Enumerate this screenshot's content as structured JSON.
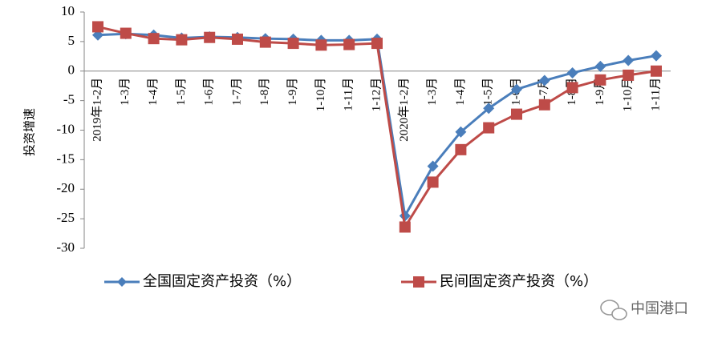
{
  "chart_data": {
    "type": "line",
    "y_label": "投资增速",
    "categories": [
      "2019年1-2月",
      "1-3月",
      "1-4月",
      "1-5月",
      "1-6月",
      "1-7月",
      "1-8月",
      "1-9月",
      "1-10月",
      "1-11月",
      "1-12月",
      "2020年1-2月",
      "1-3月",
      "1-4月",
      "1-5月",
      "1-6月",
      "1-7月",
      "1-8月",
      "1-9月",
      "1-10月",
      "1-11月"
    ],
    "series": [
      {
        "name": "全国固定资产投资（%）",
        "color": "#4a7ebb",
        "marker": "diamond",
        "values": [
          6.1,
          6.3,
          6.1,
          5.6,
          5.8,
          5.7,
          5.5,
          5.4,
          5.2,
          5.2,
          5.4,
          -24.5,
          -16.1,
          -10.3,
          -6.3,
          -3.1,
          -1.6,
          -0.3,
          0.8,
          1.8,
          2.6
        ]
      },
      {
        "name": "民间固定资产投资（%）",
        "color": "#be4b48",
        "marker": "square",
        "values": [
          7.5,
          6.4,
          5.5,
          5.3,
          5.7,
          5.4,
          4.9,
          4.7,
          4.4,
          4.5,
          4.7,
          -26.4,
          -18.8,
          -13.3,
          -9.6,
          -7.3,
          -5.7,
          -2.8,
          -1.5,
          -0.7,
          0.0
        ]
      }
    ],
    "ylim": [
      -30,
      10
    ],
    "yticks": [
      -30,
      -25,
      -20,
      -15,
      -10,
      -5,
      0,
      5,
      10
    ],
    "grid": false,
    "legend": "bottom",
    "watermark": "中国港口"
  }
}
